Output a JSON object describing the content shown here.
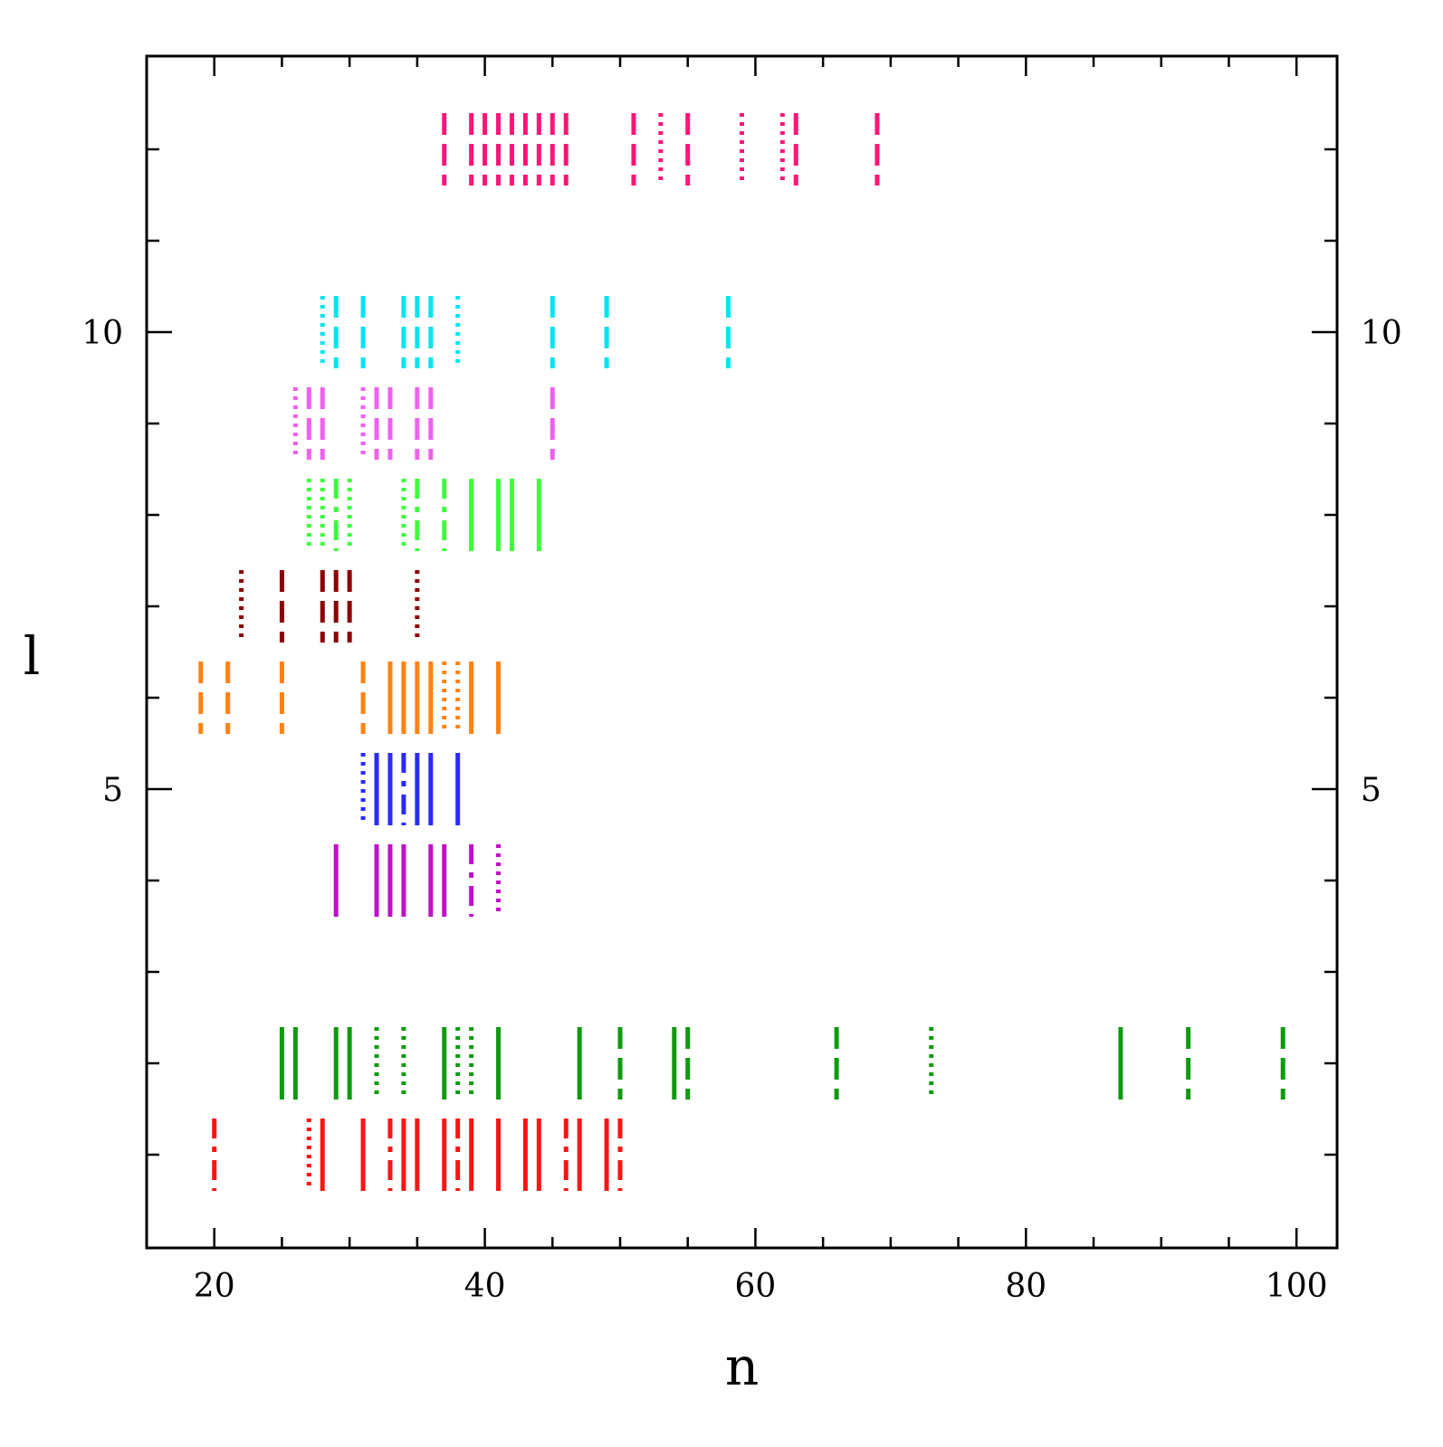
{
  "chart_data": {
    "type": "scatter",
    "title": "",
    "xlabel": "n",
    "ylabel": "l",
    "xlim": [
      15,
      103
    ],
    "ylim": [
      -0.02,
      13.02
    ],
    "grid": false,
    "x_ticks_major": [
      20,
      40,
      60,
      80,
      100
    ],
    "x_tick_labels": [
      "20",
      "40",
      "60",
      "80",
      "100"
    ],
    "y_ticks_major": [
      5,
      10
    ],
    "y_tick_labels": [
      "5",
      "10"
    ],
    "y_tick_labels_right": [
      "5",
      "10"
    ],
    "series": [
      {
        "l": 1,
        "color": "#ff1414",
        "marks": [
          {
            "n": 20,
            "style": "dashdot"
          },
          {
            "n": 27,
            "style": "dotted"
          },
          {
            "n": 28,
            "style": "solid"
          },
          {
            "n": 31,
            "style": "solid"
          },
          {
            "n": 33,
            "style": "dashdot"
          },
          {
            "n": 34,
            "style": "solid"
          },
          {
            "n": 35,
            "style": "solid"
          },
          {
            "n": 37,
            "style": "solid"
          },
          {
            "n": 38,
            "style": "dashdot"
          },
          {
            "n": 39,
            "style": "solid"
          },
          {
            "n": 41,
            "style": "solid"
          },
          {
            "n": 43,
            "style": "solid"
          },
          {
            "n": 44,
            "style": "solid"
          },
          {
            "n": 46,
            "style": "dashdot"
          },
          {
            "n": 47,
            "style": "solid"
          },
          {
            "n": 49,
            "style": "solid"
          },
          {
            "n": 50,
            "style": "dashdot"
          }
        ]
      },
      {
        "l": 2,
        "color": "#0f9a0f",
        "marks": [
          {
            "n": 25,
            "style": "solid"
          },
          {
            "n": 26,
            "style": "solid"
          },
          {
            "n": 29,
            "style": "solid"
          },
          {
            "n": 30,
            "style": "solid"
          },
          {
            "n": 32,
            "style": "dotted"
          },
          {
            "n": 34,
            "style": "dotted"
          },
          {
            "n": 37,
            "style": "solid"
          },
          {
            "n": 38,
            "style": "dotted"
          },
          {
            "n": 39,
            "style": "dotted"
          },
          {
            "n": 41,
            "style": "solid"
          },
          {
            "n": 47,
            "style": "solid"
          },
          {
            "n": 50,
            "style": "dashed"
          },
          {
            "n": 54,
            "style": "solid"
          },
          {
            "n": 55,
            "style": "dashed"
          },
          {
            "n": 66,
            "style": "dashed"
          },
          {
            "n": 73,
            "style": "dotted"
          },
          {
            "n": 87,
            "style": "solid"
          },
          {
            "n": 92,
            "style": "dashed"
          },
          {
            "n": 99,
            "style": "dashed"
          }
        ]
      },
      {
        "l": 4,
        "color": "#c010c8",
        "marks": [
          {
            "n": 29,
            "style": "solid"
          },
          {
            "n": 32,
            "style": "solid"
          },
          {
            "n": 33,
            "style": "solid"
          },
          {
            "n": 34,
            "style": "solid"
          },
          {
            "n": 36,
            "style": "solid"
          },
          {
            "n": 37,
            "style": "solid"
          },
          {
            "n": 39,
            "style": "dashdot"
          },
          {
            "n": 41,
            "style": "dotted"
          }
        ]
      },
      {
        "l": 5,
        "color": "#2a2aff",
        "marks": [
          {
            "n": 31,
            "style": "dotted"
          },
          {
            "n": 32,
            "style": "solid"
          },
          {
            "n": 33,
            "style": "solid"
          },
          {
            "n": 34,
            "style": "dashdot"
          },
          {
            "n": 35,
            "style": "solid"
          },
          {
            "n": 36,
            "style": "solid"
          },
          {
            "n": 38,
            "style": "solid"
          }
        ]
      },
      {
        "l": 6,
        "color": "#ff8214",
        "marks": [
          {
            "n": 19,
            "style": "dashed"
          },
          {
            "n": 21,
            "style": "dashed"
          },
          {
            "n": 25,
            "style": "dashed"
          },
          {
            "n": 31,
            "style": "dashed"
          },
          {
            "n": 33,
            "style": "solid"
          },
          {
            "n": 34,
            "style": "solid"
          },
          {
            "n": 35,
            "style": "solid"
          },
          {
            "n": 36,
            "style": "solid"
          },
          {
            "n": 37,
            "style": "dotted"
          },
          {
            "n": 38,
            "style": "dotted"
          },
          {
            "n": 39,
            "style": "solid"
          },
          {
            "n": 41,
            "style": "solid"
          }
        ]
      },
      {
        "l": 7,
        "color": "#8b0000",
        "marks": [
          {
            "n": 22,
            "style": "dotted"
          },
          {
            "n": 25,
            "style": "dashed"
          },
          {
            "n": 28,
            "style": "dashed"
          },
          {
            "n": 29,
            "style": "dashed"
          },
          {
            "n": 30,
            "style": "dashed"
          },
          {
            "n": 35,
            "style": "dotted"
          }
        ]
      },
      {
        "l": 8,
        "color": "#3cff3c",
        "marks": [
          {
            "n": 27,
            "style": "dotted"
          },
          {
            "n": 28,
            "style": "dotted"
          },
          {
            "n": 29,
            "style": "dashdot"
          },
          {
            "n": 30,
            "style": "dotted"
          },
          {
            "n": 34,
            "style": "dotted"
          },
          {
            "n": 35,
            "style": "dashdot"
          },
          {
            "n": 37,
            "style": "dashdot"
          },
          {
            "n": 39,
            "style": "solid"
          },
          {
            "n": 41,
            "style": "solid"
          },
          {
            "n": 42,
            "style": "solid"
          },
          {
            "n": 44,
            "style": "solid"
          }
        ]
      },
      {
        "l": 9,
        "color": "#f060f0",
        "marks": [
          {
            "n": 26,
            "style": "dotted"
          },
          {
            "n": 27,
            "style": "dashed"
          },
          {
            "n": 28,
            "style": "dashed"
          },
          {
            "n": 31,
            "style": "dotted"
          },
          {
            "n": 32,
            "style": "dashed"
          },
          {
            "n": 33,
            "style": "dashed"
          },
          {
            "n": 35,
            "style": "dashed"
          },
          {
            "n": 36,
            "style": "dashed"
          },
          {
            "n": 45,
            "style": "dashed"
          }
        ]
      },
      {
        "l": 10,
        "color": "#00e5f0",
        "marks": [
          {
            "n": 28,
            "style": "dotted"
          },
          {
            "n": 29,
            "style": "dashed"
          },
          {
            "n": 31,
            "style": "dashed"
          },
          {
            "n": 34,
            "style": "dashed"
          },
          {
            "n": 35,
            "style": "dashed"
          },
          {
            "n": 36,
            "style": "dashed"
          },
          {
            "n": 38,
            "style": "dotted"
          },
          {
            "n": 45,
            "style": "dashed"
          },
          {
            "n": 49,
            "style": "dashed"
          },
          {
            "n": 58,
            "style": "dashed"
          }
        ]
      },
      {
        "l": 12,
        "color": "#ff1478",
        "marks": [
          {
            "n": 37,
            "style": "dashed"
          },
          {
            "n": 39,
            "style": "dashed"
          },
          {
            "n": 40,
            "style": "dashed"
          },
          {
            "n": 41,
            "style": "dashed"
          },
          {
            "n": 42,
            "style": "dashed"
          },
          {
            "n": 43,
            "style": "dashed"
          },
          {
            "n": 44,
            "style": "dashed"
          },
          {
            "n": 45,
            "style": "dashed"
          },
          {
            "n": 46,
            "style": "dashed"
          },
          {
            "n": 51,
            "style": "dashed"
          },
          {
            "n": 53,
            "style": "dotted"
          },
          {
            "n": 55,
            "style": "dashed"
          },
          {
            "n": 59,
            "style": "dotted"
          },
          {
            "n": 62,
            "style": "dotted"
          },
          {
            "n": 63,
            "style": "dashed"
          },
          {
            "n": 69,
            "style": "dashed"
          }
        ]
      }
    ]
  }
}
